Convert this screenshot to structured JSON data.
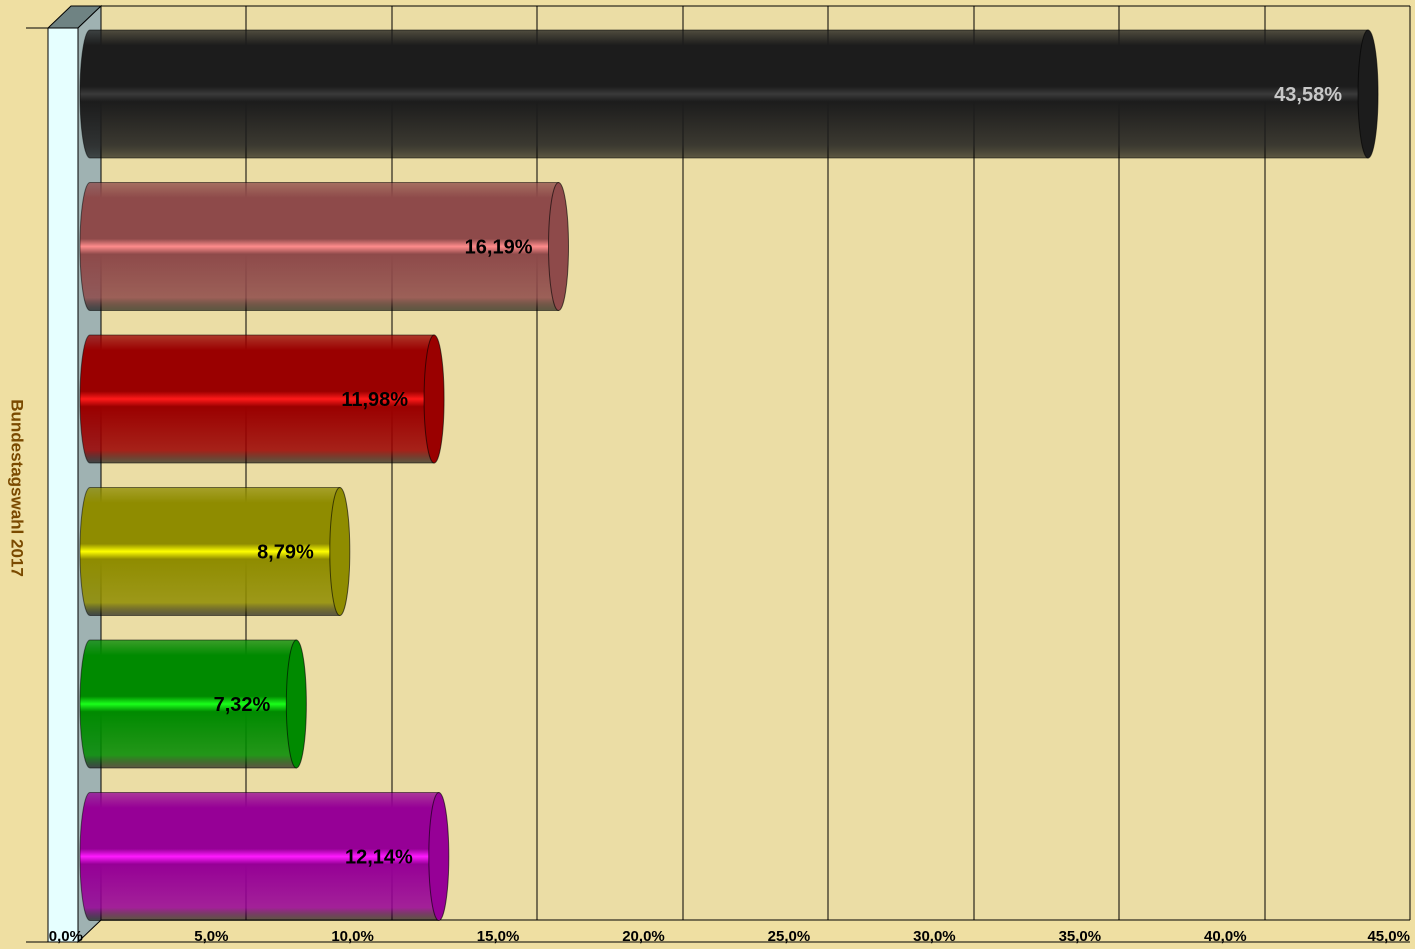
{
  "chart_data": {
    "type": "bar",
    "orientation": "horizontal",
    "style": "3d-cylinder",
    "ylabel": "Bundestagswahl 2017",
    "xlim": [
      0,
      45
    ],
    "ticks": [
      "0,0%",
      "5,0%",
      "10,0%",
      "15,0%",
      "20,0%",
      "25,0%",
      "30,0%",
      "35,0%",
      "40,0%",
      "45,0%"
    ],
    "grid": true,
    "bars": [
      {
        "value": 43.58,
        "label": "43,58%",
        "color": "#1c1c1c",
        "highlight": "#3a3a3a",
        "label_color": "#c8c8c8"
      },
      {
        "value": 16.19,
        "label": "16,19%",
        "color": "#8e4a4a",
        "highlight": "#ff8c8c",
        "label_color": "#000000"
      },
      {
        "value": 11.98,
        "label": "11,98%",
        "color": "#9a0000",
        "highlight": "#ff1a1a",
        "label_color": "#000000"
      },
      {
        "value": 8.79,
        "label": "8,79%",
        "color": "#8f8c00",
        "highlight": "#ffff00",
        "label_color": "#000000"
      },
      {
        "value": 7.32,
        "label": "7,32%",
        "color": "#008a00",
        "highlight": "#1aff1a",
        "label_color": "#000000"
      },
      {
        "value": 12.14,
        "label": "12,14%",
        "color": "#960096",
        "highlight": "#ff1aff",
        "label_color": "#000000"
      }
    ],
    "colors": {
      "background": "#efdfa2",
      "plot_area": "#ebdda5",
      "grid": "#000000",
      "wall_side": "#9fb2b2",
      "wall_front": "#e6ffff",
      "wall_top": "#6f8383",
      "axis_title": "#7a4a00",
      "tick_text": "#000000"
    }
  }
}
